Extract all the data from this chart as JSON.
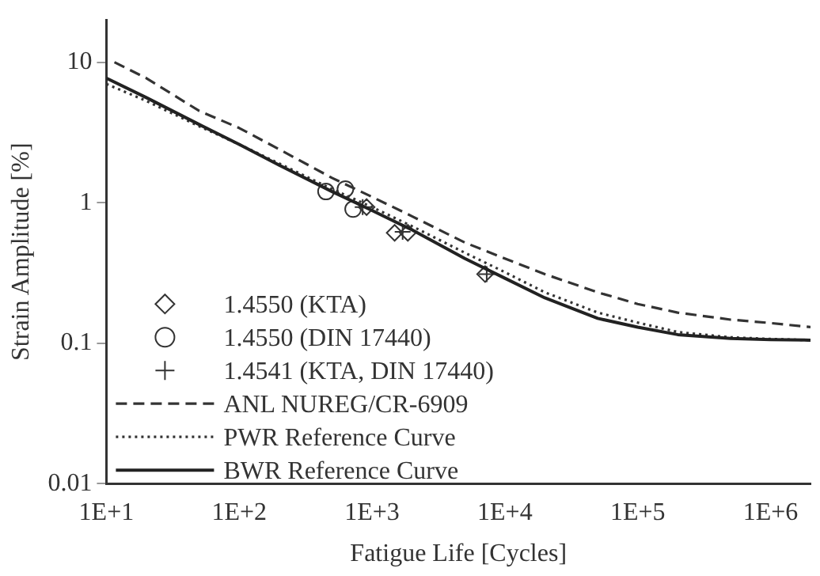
{
  "chart_data": {
    "type": "line",
    "xlabel": "Fatigue Life [Cycles]",
    "ylabel": "Strain Amplitude [%]",
    "log": "xy",
    "xlim": [
      10,
      2000000
    ],
    "ylim": [
      0.01,
      20
    ],
    "xticks": [
      {
        "value": 10,
        "label": "1E+1"
      },
      {
        "value": 100,
        "label": "1E+2"
      },
      {
        "value": 1000,
        "label": "1E+3"
      },
      {
        "value": 10000,
        "label": "1E+4"
      },
      {
        "value": 100000,
        "label": "1E+5"
      },
      {
        "value": 1000000,
        "label": "1E+6"
      }
    ],
    "yticks": [
      0.01,
      0.1,
      1,
      10
    ],
    "grid": false,
    "legend": "bottom left",
    "series": [
      {
        "name": "1.4550 (KTA)",
        "type": "scatter",
        "marker": "diamond",
        "color": "#333333",
        "x": [
          910,
          1480,
          1860,
          7100
        ],
        "values": [
          0.93,
          0.61,
          0.61,
          0.31
        ]
      },
      {
        "name": "1.4550 (DIN 17440)",
        "type": "scatter",
        "marker": "circle",
        "color": "#333333",
        "x": [
          450,
          630,
          720
        ],
        "values": [
          1.2,
          1.25,
          0.9
        ]
      },
      {
        "name": "1.4541 (KTA, DIN 17440)",
        "type": "scatter",
        "marker": "cross",
        "color": "#333333",
        "x": [
          850,
          1700,
          7300
        ],
        "values": [
          0.93,
          0.62,
          0.31
        ]
      },
      {
        "name": "ANL NUREG/CR-6909",
        "line_style": "dashed",
        "marker": "none",
        "color": "#333333",
        "x": [
          11.5,
          20,
          50,
          100,
          200,
          500,
          1000,
          2000,
          5000,
          10000,
          20000,
          50000,
          100000,
          200000,
          500000,
          1000000,
          2000000
        ],
        "values": [
          10,
          7.7,
          4.5,
          3.4,
          2.4,
          1.5,
          1.1,
          0.8,
          0.52,
          0.4,
          0.31,
          0.23,
          0.19,
          0.165,
          0.147,
          0.139,
          0.13
        ]
      },
      {
        "name": "PWR Reference Curve",
        "line_style": "dotted",
        "marker": "none",
        "color": "#333333",
        "x": [
          10,
          20,
          50,
          100,
          200,
          500,
          1000,
          2000,
          5000,
          10000,
          20000,
          50000,
          100000,
          200000,
          500000,
          1000000,
          2000000
        ],
        "values": [
          7.0,
          5.3,
          3.5,
          2.6,
          1.9,
          1.25,
          0.93,
          0.68,
          0.44,
          0.32,
          0.23,
          0.165,
          0.14,
          0.12,
          0.11,
          0.107,
          0.105
        ]
      },
      {
        "name": "BWR Reference Curve",
        "line_style": "solid",
        "marker": "none",
        "color": "#222222",
        "x": [
          10,
          20,
          50,
          100,
          200,
          500,
          1000,
          2000,
          5000,
          10000,
          20000,
          50000,
          100000,
          200000,
          500000,
          1000000,
          2000000
        ],
        "values": [
          7.7,
          5.6,
          3.6,
          2.6,
          1.85,
          1.2,
          0.88,
          0.64,
          0.4,
          0.29,
          0.21,
          0.15,
          0.13,
          0.115,
          0.108,
          0.106,
          0.105
        ]
      }
    ]
  }
}
